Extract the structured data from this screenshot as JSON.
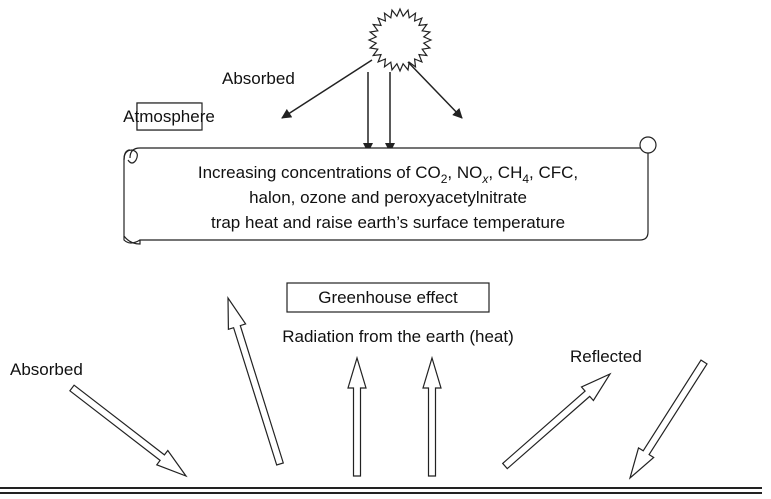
{
  "top_label": "Absorbed",
  "atmosphere": "Atmosphere",
  "scroll": {
    "line1": [
      {
        "text": "Increasing concentrations of CO"
      },
      {
        "text": "2",
        "sub": true
      },
      {
        "text": ", NO"
      },
      {
        "text": "x",
        "sub": true,
        "italic": true
      },
      {
        "text": ", CH"
      },
      {
        "text": "4",
        "sub": true
      },
      {
        "text": ", CFC,"
      }
    ],
    "line2": "halon, ozone and peroxyacetylnitrate",
    "line3": "trap heat and raise earth’s surface temperature"
  },
  "greenhouse": "Greenhouse effect",
  "radiation": "Radiation from the earth (heat)",
  "bottom_left": "Absorbed",
  "bottom_right": "Reflected"
}
